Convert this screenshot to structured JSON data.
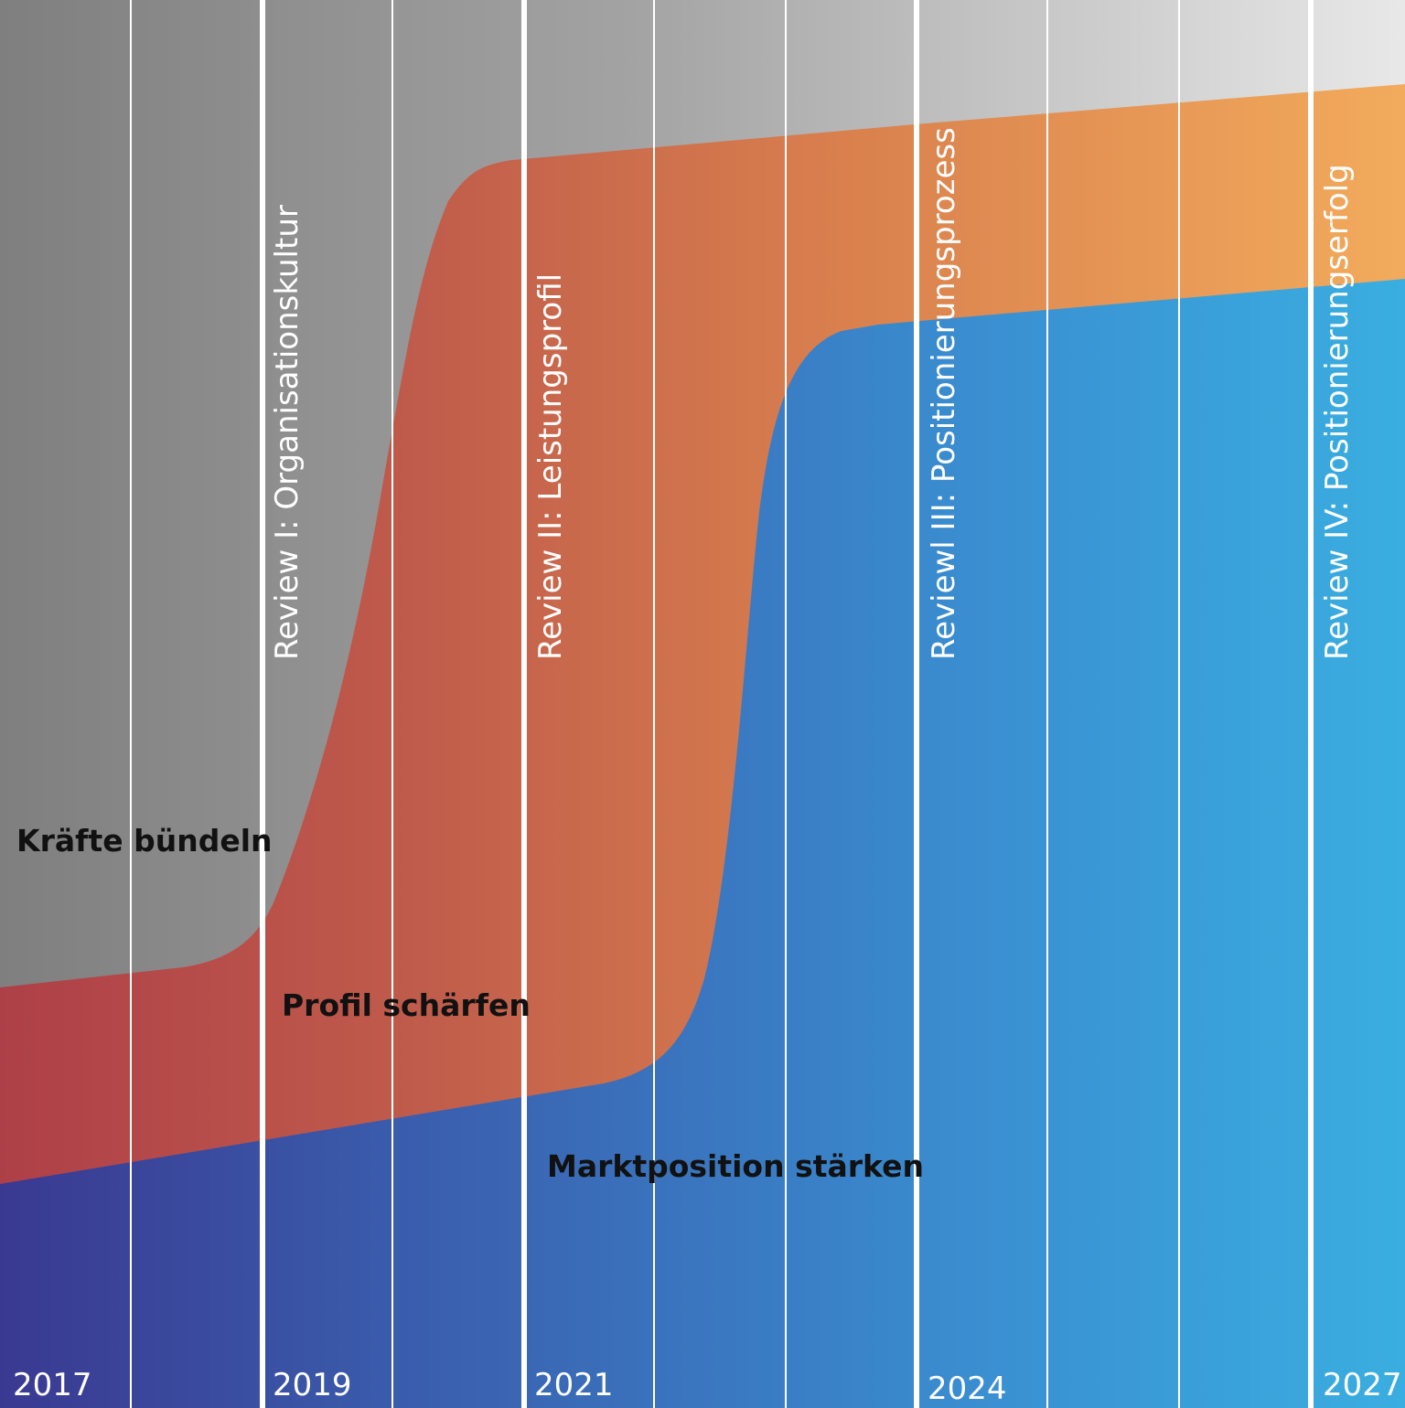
{
  "diagram": {
    "bands": [
      {
        "id": "kraefte",
        "label": "Kräfte bündeln"
      },
      {
        "id": "profil",
        "label": "Profil schärfen"
      },
      {
        "id": "markt",
        "label": "Marktposition stärken"
      }
    ],
    "reviews": [
      {
        "label": "Review I: Organisationskultur"
      },
      {
        "label": "Review II: Leistungsprofil"
      },
      {
        "label": "Reviewl III: Positionierungsprozess"
      },
      {
        "label": "Review IV: Positionierungserfolg"
      }
    ],
    "years": [
      "2017",
      "2019",
      "2021",
      "2024",
      "2027"
    ],
    "colors": {
      "grey_dark": "#7f7f7f",
      "grey_light": "#e6e6e6",
      "red": "#b0434a",
      "orange_mid": "#c9684a",
      "orange_light": "#f0a95c",
      "blue_dark": "#3b3a93",
      "blue_mid": "#3a74bb",
      "blue_light": "#3aaee0",
      "divider": "#ffffff"
    }
  }
}
